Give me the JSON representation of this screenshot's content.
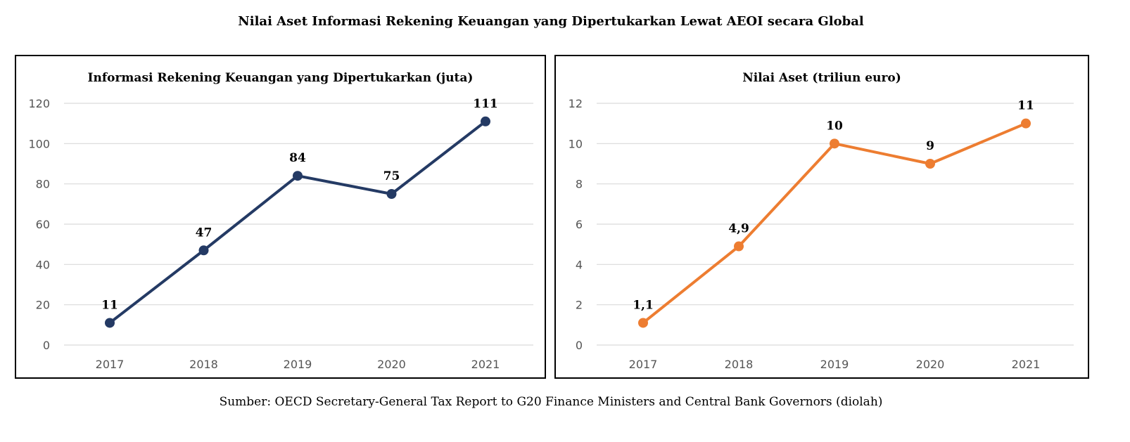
{
  "title": "Nilai Aset Informasi Rekening Keuangan yang Dipertukarkan Lewat AEOI secara Global",
  "source": "Sumber: OECD Secretary-General Tax Report to G20 Finance Ministers and Central Bank Governors (diolah)",
  "chart_data": [
    {
      "type": "line",
      "title": "Informasi Rekening Keuangan yang Dipertukarkan (juta)",
      "categories": [
        "2017",
        "2018",
        "2019",
        "2020",
        "2021"
      ],
      "values": [
        11,
        47,
        84,
        75,
        111
      ],
      "data_labels": [
        "11",
        "47",
        "84",
        "75",
        "111"
      ],
      "ylim": [
        0,
        120
      ],
      "yticks": [
        "0",
        "20",
        "40",
        "60",
        "80",
        "100",
        "120"
      ],
      "color": "#243a64",
      "grid": true
    },
    {
      "type": "line",
      "title": "Nilai Aset (triliun euro)",
      "categories": [
        "2017",
        "2018",
        "2019",
        "2020",
        "2021"
      ],
      "values": [
        1.1,
        4.9,
        10,
        9,
        11
      ],
      "data_labels": [
        "1,1",
        "4,9",
        "10",
        "9",
        "11"
      ],
      "ylim": [
        0,
        12
      ],
      "yticks": [
        "0",
        "2",
        "4",
        "6",
        "8",
        "10",
        "12"
      ],
      "color": "#ed7d31",
      "grid": true
    }
  ]
}
